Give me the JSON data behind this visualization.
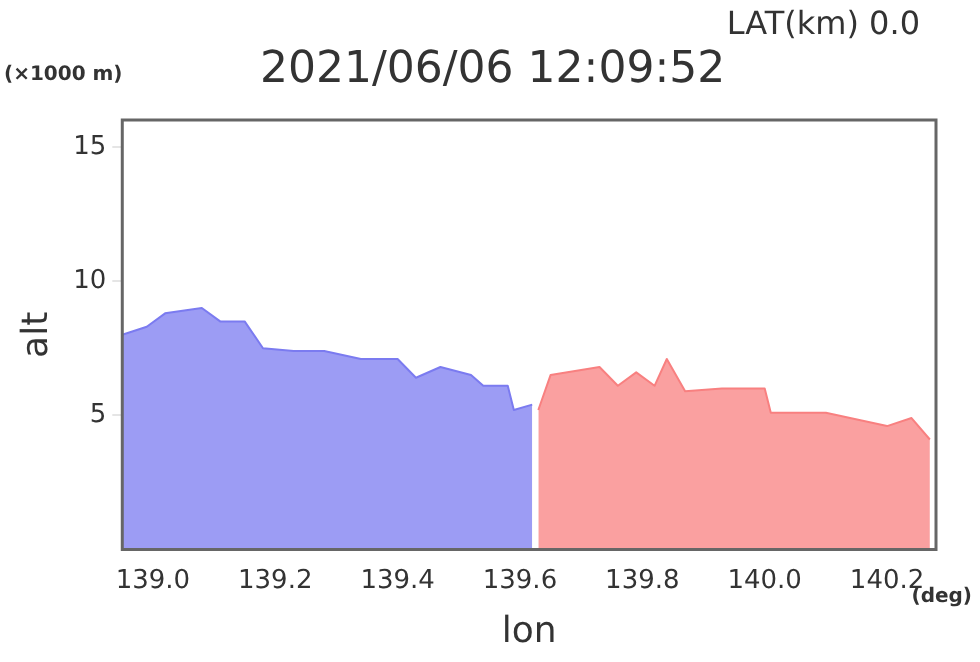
{
  "chart_data": {
    "type": "area",
    "title": "2021/06/06 12:09:52",
    "xlabel": "lon",
    "ylabel": "alt",
    "annotations": [
      "LAT(km) 0.0",
      "(×1000 m)",
      "(deg)"
    ],
    "series": [
      {
        "color": "#7b7bf0",
        "x": [
          138.95,
          138.99,
          139.02,
          139.08,
          139.11,
          139.15,
          139.18,
          139.23,
          139.28,
          139.34,
          139.4,
          139.43,
          139.47,
          139.52,
          139.54,
          139.58,
          139.59,
          139.62
        ],
        "values": [
          8.0,
          8.3,
          8.8,
          9.0,
          8.5,
          8.5,
          7.5,
          7.4,
          7.4,
          7.1,
          7.1,
          6.4,
          6.8,
          6.5,
          6.1,
          6.1,
          5.2,
          5.4
        ]
      },
      {
        "color": "#f88080",
        "x": [
          139.63,
          139.65,
          139.73,
          139.76,
          139.79,
          139.82,
          139.84,
          139.87,
          139.93,
          140.0,
          140.01,
          140.1,
          140.2,
          140.24,
          140.27
        ],
        "values": [
          5.2,
          6.5,
          6.8,
          6.1,
          6.6,
          6.1,
          7.1,
          5.9,
          6.0,
          6.0,
          5.1,
          5.1,
          4.6,
          4.9,
          4.1
        ]
      }
    ],
    "xlim": [
      138.95,
      140.28
    ],
    "xticks": [
      {
        "value": 139,
        "label": "139.0"
      },
      {
        "value": 139.2,
        "label": "139.2"
      },
      {
        "value": 139.4,
        "label": "139.4"
      },
      {
        "value": 139.6,
        "label": "139.6"
      },
      {
        "value": 139.8,
        "label": "139.8"
      },
      {
        "value": 140,
        "label": "140.0"
      },
      {
        "value": 140.2,
        "label": "140.2"
      }
    ],
    "ylim": [
      0,
      16
    ],
    "yticks": [
      5,
      10,
      15
    ],
    "grid": false,
    "legend": false
  }
}
